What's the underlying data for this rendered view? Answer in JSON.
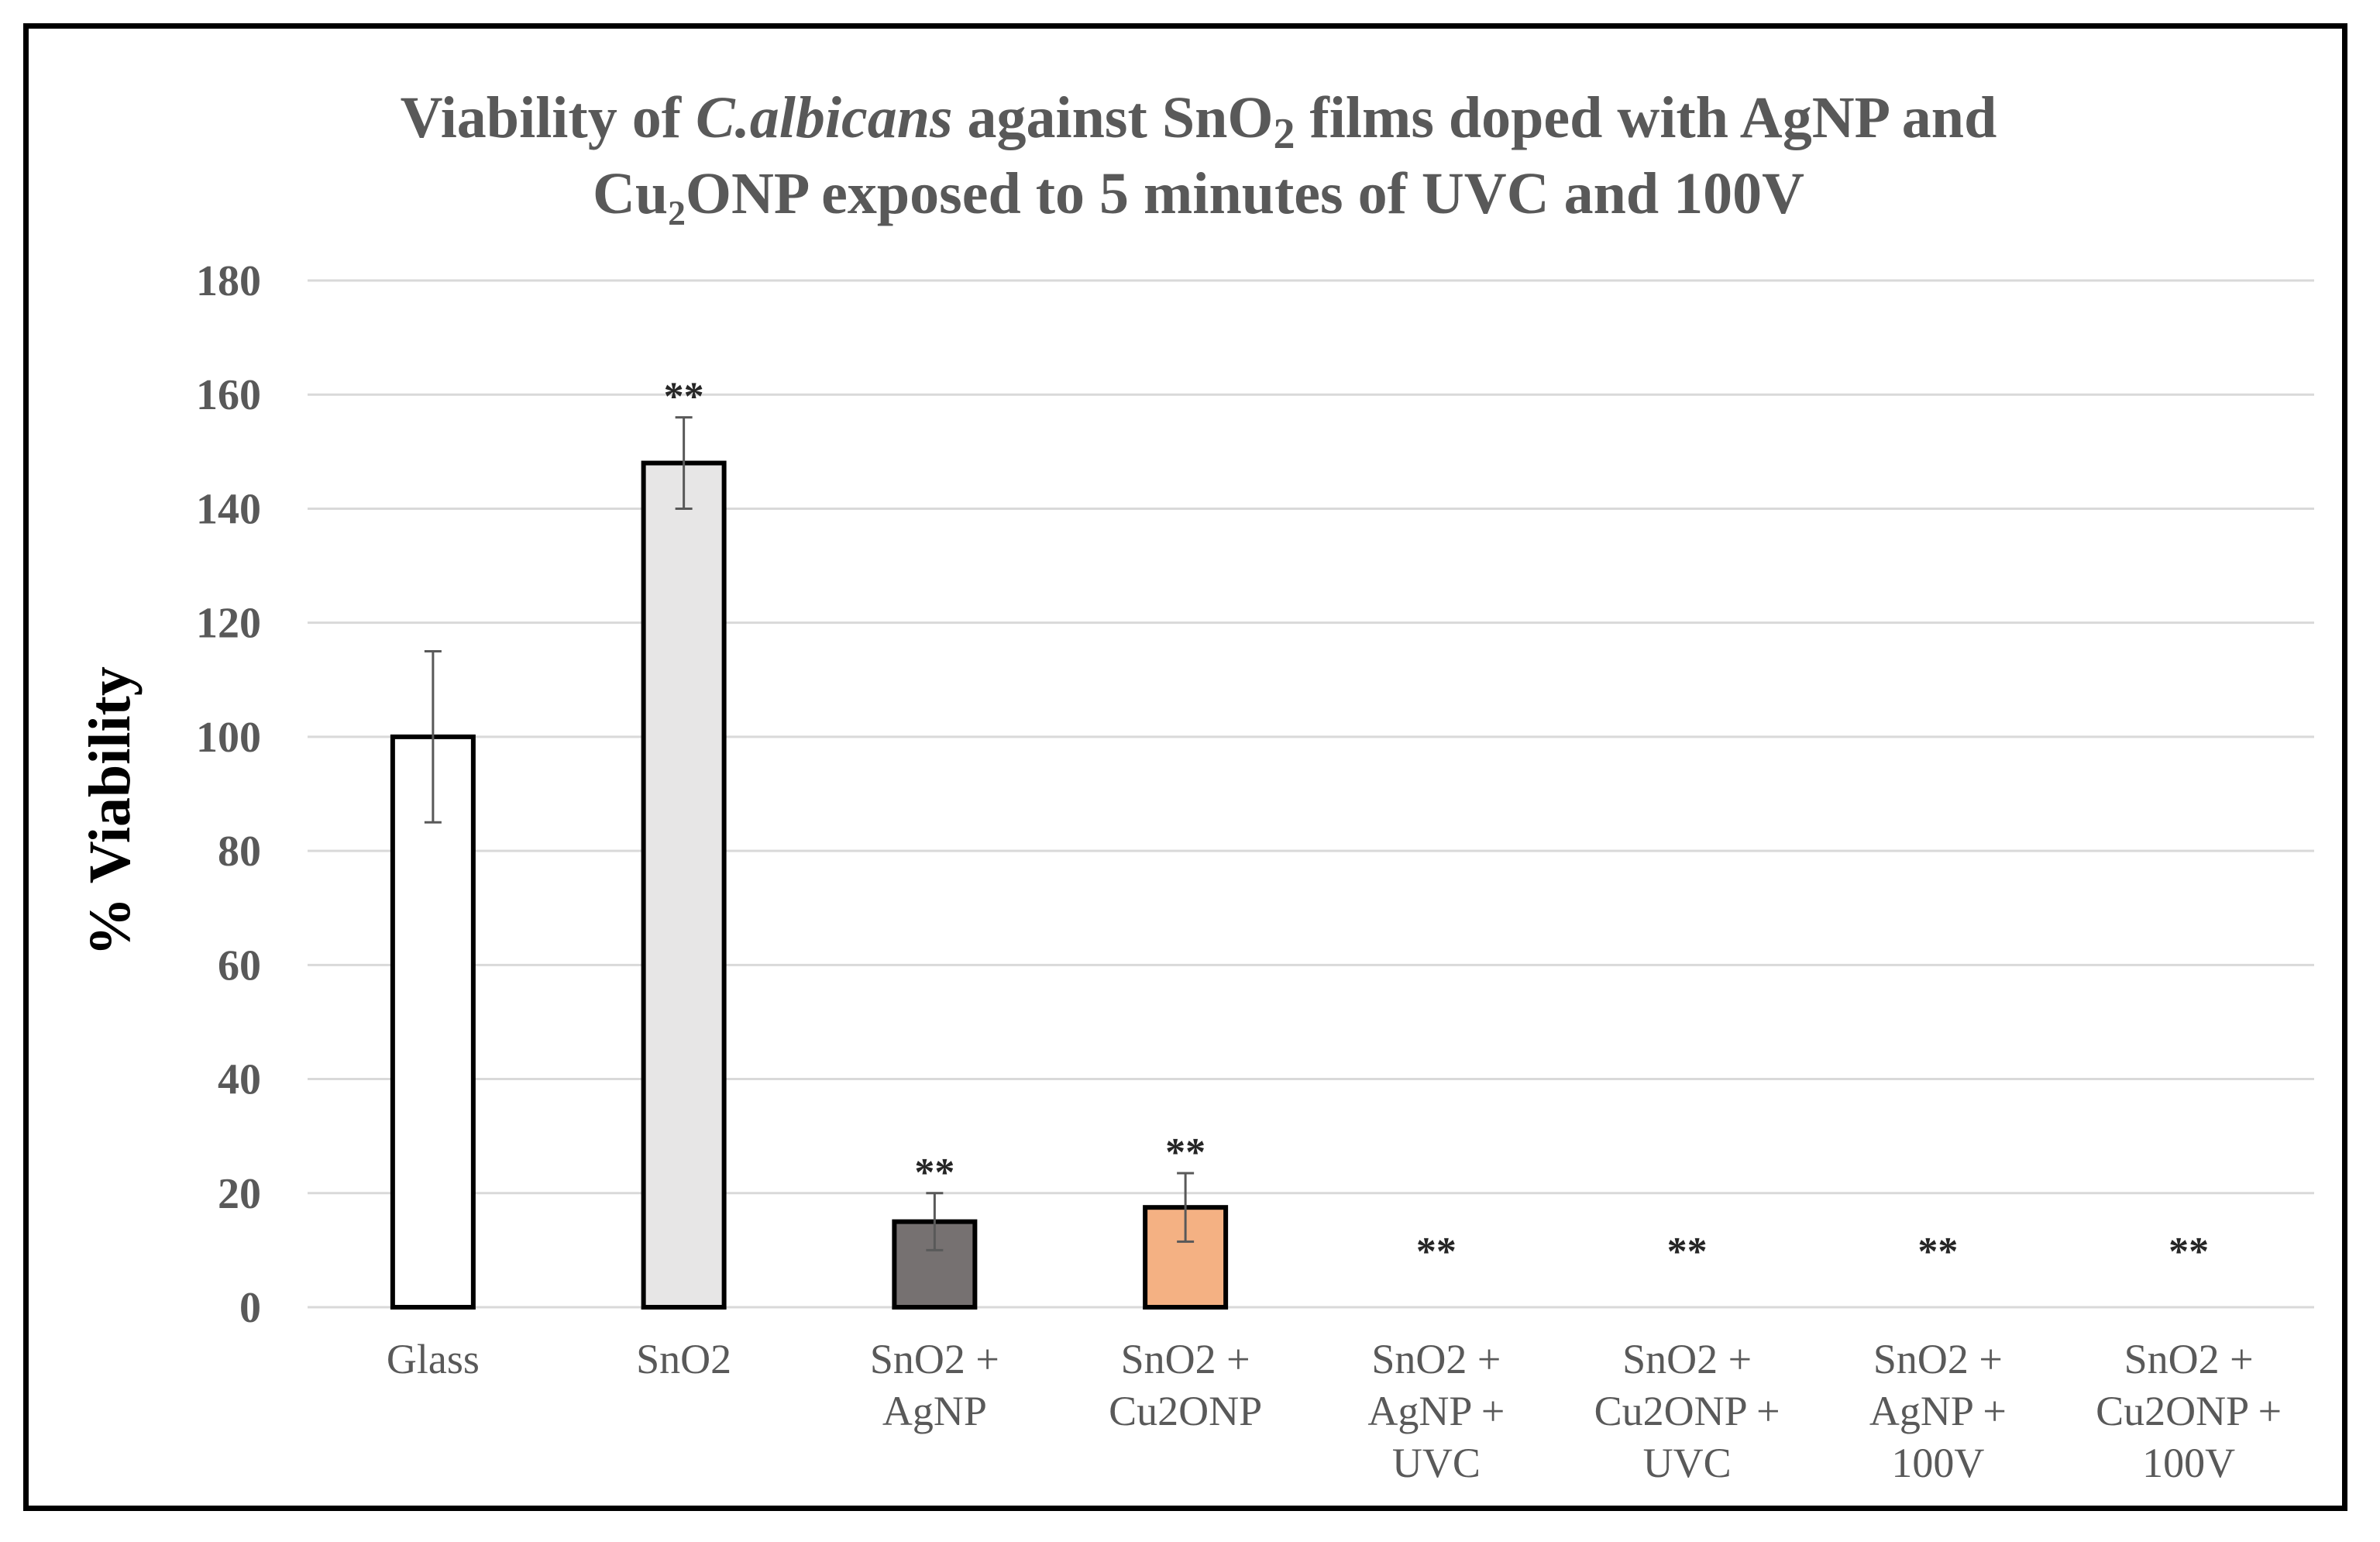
{
  "chart_data": {
    "type": "bar",
    "title": {
      "line1": [
        {
          "text": "Viability of ",
          "italic": false,
          "sub": false
        },
        {
          "text": "C.albicans",
          "italic": true,
          "sub": false
        },
        {
          "text": " against SnO",
          "italic": false,
          "sub": false
        },
        {
          "text": "2",
          "italic": false,
          "sub": true
        },
        {
          "text": " films doped with AgNP and",
          "italic": false,
          "sub": false
        }
      ],
      "line2": "Cu₂ONP exposed to 5 minutes of UVC and 100V"
    },
    "ylabel": "% Viability",
    "xlabel": "",
    "ylim": [
      0,
      180
    ],
    "yticks": [
      0,
      20,
      40,
      60,
      80,
      100,
      120,
      140,
      160,
      180
    ],
    "grid": true,
    "categories": [
      [
        "Glass"
      ],
      [
        "SnO2"
      ],
      [
        "SnO2 +",
        "AgNP"
      ],
      [
        "SnO2 +",
        "Cu2ONP"
      ],
      [
        "SnO2 +",
        "AgNP +",
        "UVC"
      ],
      [
        "SnO2 +",
        "Cu2ONP +",
        "UVC"
      ],
      [
        "SnO2 +",
        "AgNP +",
        "100V"
      ],
      [
        "SnO2 +",
        "Cu2ONP +",
        "100V"
      ]
    ],
    "values": [
      100,
      148,
      15,
      17.5,
      0,
      0,
      0,
      0
    ],
    "errors": [
      15,
      8,
      5,
      6,
      0,
      0,
      0,
      0
    ],
    "significance": [
      "",
      "**",
      "**",
      "**",
      "**",
      "**",
      "**",
      "**"
    ],
    "bar_colors": [
      "#ffffff",
      "#e7e6e6",
      "#767171",
      "#f4b183",
      "#ffffff",
      "#ffffff",
      "#ffffff",
      "#ffffff"
    ]
  }
}
